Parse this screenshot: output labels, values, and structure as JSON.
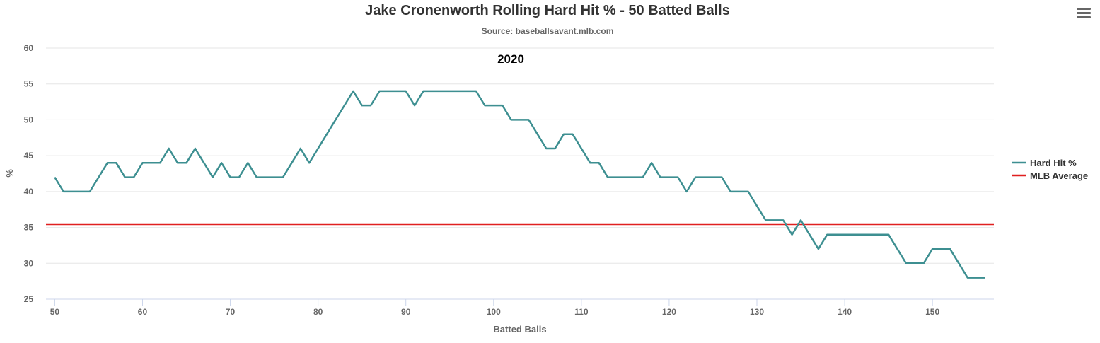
{
  "menu": {
    "icon": "hamburger-menu-icon"
  },
  "chart_data": {
    "type": "line",
    "title": "Jake Cronenworth Rolling Hard Hit % - 50 Batted Balls",
    "subtitle": "Source: baseballsavant.mlb.com",
    "xlabel": "Batted Balls",
    "ylabel": "%",
    "annotation": "2020",
    "xlim": [
      49,
      157
    ],
    "ylim": [
      25,
      60
    ],
    "x_ticks": [
      50,
      60,
      70,
      80,
      90,
      100,
      110,
      120,
      130,
      140,
      150
    ],
    "y_ticks": [
      25,
      30,
      35,
      40,
      45,
      50,
      55,
      60
    ],
    "grid": true,
    "legend_position": "right",
    "series": [
      {
        "name": "Hard Hit %",
        "color": "#3d8f91",
        "x": [
          50,
          51,
          52,
          53,
          54,
          55,
          56,
          57,
          58,
          59,
          60,
          61,
          62,
          63,
          64,
          65,
          66,
          67,
          68,
          69,
          70,
          71,
          72,
          73,
          74,
          75,
          76,
          77,
          78,
          79,
          80,
          81,
          82,
          83,
          84,
          85,
          86,
          87,
          88,
          89,
          90,
          91,
          92,
          93,
          94,
          95,
          96,
          97,
          98,
          99,
          100,
          101,
          102,
          103,
          104,
          105,
          106,
          107,
          108,
          109,
          110,
          111,
          112,
          113,
          114,
          115,
          116,
          117,
          118,
          119,
          120,
          121,
          122,
          123,
          124,
          125,
          126,
          127,
          128,
          129,
          130,
          131,
          132,
          133,
          134,
          135,
          136,
          137,
          138,
          139,
          140,
          141,
          142,
          143,
          144,
          145,
          146,
          147,
          148,
          149,
          150,
          151,
          152,
          153,
          154,
          155,
          156
        ],
        "values": [
          42,
          40,
          40,
          40,
          40,
          42,
          44,
          44,
          42,
          42,
          44,
          44,
          44,
          46,
          44,
          44,
          46,
          44,
          42,
          44,
          42,
          42,
          44,
          42,
          42,
          42,
          42,
          44,
          46,
          44,
          46,
          48,
          50,
          52,
          54,
          52,
          52,
          54,
          54,
          54,
          54,
          52,
          54,
          54,
          54,
          54,
          54,
          54,
          54,
          52,
          52,
          52,
          50,
          50,
          50,
          48,
          46,
          46,
          48,
          48,
          46,
          44,
          44,
          42,
          42,
          42,
          42,
          42,
          44,
          42,
          42,
          42,
          40,
          42,
          42,
          42,
          42,
          40,
          40,
          40,
          38,
          36,
          36,
          36,
          34,
          36,
          34,
          32,
          34,
          34,
          34,
          34,
          34,
          34,
          34,
          34,
          32,
          30,
          30,
          30,
          32,
          32,
          32,
          30,
          28,
          28,
          28
        ]
      },
      {
        "name": "MLB Average",
        "color": "#e02020",
        "x": [
          49,
          157
        ],
        "values": [
          35.4,
          35.4
        ]
      }
    ]
  }
}
